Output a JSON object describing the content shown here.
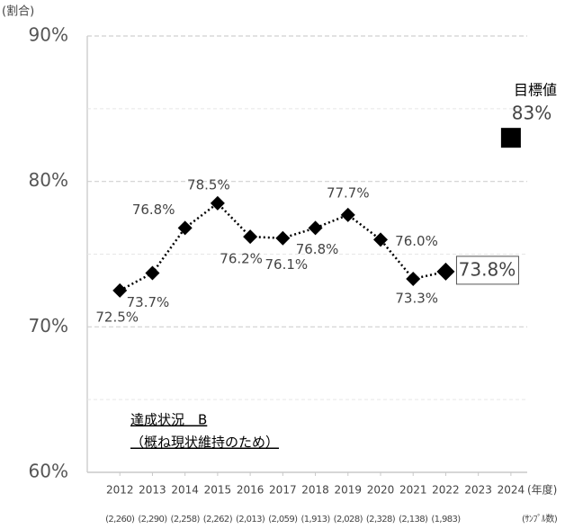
{
  "chart_data": {
    "type": "line",
    "y_axis_label": "(割合)",
    "x_axis_label": "(年度)",
    "x": [
      2012,
      2013,
      2014,
      2015,
      2016,
      2017,
      2018,
      2019,
      2020,
      2021,
      2022
    ],
    "series": [
      {
        "color": "#000000",
        "values": [
          72.5,
          73.7,
          76.8,
          78.5,
          76.2,
          76.1,
          76.8,
          77.7,
          76.0,
          73.3,
          73.8
        ],
        "value_labels": [
          "72.5%",
          "73.7%",
          "76.8%",
          "78.5%",
          "76.2%",
          "76.1%",
          "76.8%",
          "77.7%",
          "76.0%",
          "73.3%",
          "73.8%"
        ]
      }
    ],
    "xlim": [
      2011,
      2024.5
    ],
    "xticks": [
      2012,
      2013,
      2014,
      2015,
      2016,
      2017,
      2018,
      2019,
      2020,
      2021,
      2022,
      2023,
      2024
    ],
    "ylim": [
      60,
      90
    ],
    "yticks": [
      {
        "value": 60,
        "label": "60%"
      },
      {
        "value": 70,
        "label": "70%"
      },
      {
        "value": 80,
        "label": "80%"
      },
      {
        "value": 90,
        "label": "90%"
      }
    ],
    "minor_yticks": [
      65,
      75,
      85
    ],
    "grid": true,
    "target": {
      "label": "目標値",
      "x": 2024,
      "value": 83,
      "value_label": "83%"
    },
    "annotation": [
      "達成状況　B",
      "（概ね現状維持のため）"
    ],
    "sample_size_label": "(ｻﾝﾌﾟﾙ数)",
    "sample_sizes": [
      "(2,260)",
      "(2,290)",
      "(2,258)",
      "(2,262)",
      "(2,013)",
      "(2,059)",
      "(1,913)",
      "(2,028)",
      "(2,328)",
      "(2,138)",
      "(1,983)"
    ]
  }
}
